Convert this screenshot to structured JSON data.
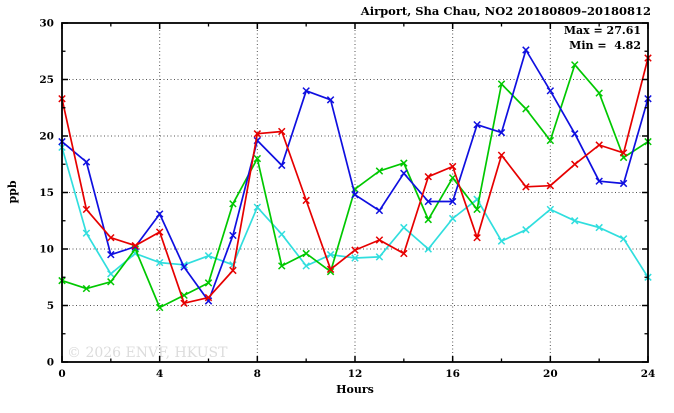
{
  "watermark": "© 2026 ENVF, HKUST",
  "chart_data": {
    "type": "line",
    "title": "Airport, Sha Chau, NO2 20180809–20180812",
    "xlabel": "Hours",
    "ylabel": "ppb",
    "xlim": [
      0,
      24
    ],
    "ylim": [
      0,
      30
    ],
    "x_major_ticks": [
      0,
      4,
      8,
      12,
      16,
      20,
      24
    ],
    "x_minor_ticks": [
      2,
      6,
      10,
      14,
      18,
      22
    ],
    "y_major_ticks": [
      0,
      5,
      10,
      15,
      20,
      25,
      30
    ],
    "y_minor_ticks": [
      2.5,
      7.5,
      12.5,
      17.5,
      22.5,
      27.5
    ],
    "grid_x": [
      4,
      8,
      12,
      16,
      20
    ],
    "grid_y": [
      5,
      10,
      15,
      20,
      25
    ],
    "grid_on": true,
    "legend_position": "top-right-inside",
    "annotations": {
      "max": 27.61,
      "min": 4.82,
      "max_label": "Max = 27.61",
      "min_label": "Min =  4.82"
    },
    "marker": "x-cross",
    "x": [
      0,
      1,
      2,
      3,
      4,
      5,
      6,
      7,
      8,
      9,
      10,
      11,
      12,
      13,
      14,
      15,
      16,
      17,
      18,
      19,
      20,
      21,
      22,
      23,
      24
    ],
    "series": [
      {
        "name": "cyan",
        "color": "#30dede",
        "values": [
          19.0,
          11.4,
          7.8,
          9.6,
          8.8,
          8.6,
          9.4,
          8.6,
          13.7,
          11.3,
          8.5,
          9.5,
          9.2,
          9.3,
          11.9,
          10.0,
          12.7,
          14.4,
          10.7,
          11.7,
          13.5,
          12.5,
          11.9,
          10.9,
          7.5
        ]
      },
      {
        "name": "green",
        "color": "#00c800",
        "values": [
          7.2,
          6.5,
          7.1,
          10.0,
          4.82,
          5.9,
          7.0,
          14.0,
          18.0,
          8.5,
          9.6,
          8.0,
          15.3,
          16.9,
          17.6,
          12.6,
          16.3,
          13.5,
          24.6,
          22.4,
          19.6,
          26.3,
          23.8,
          18.1,
          19.5
        ]
      },
      {
        "name": "blue",
        "color": "#0f0fe0",
        "values": [
          19.5,
          17.7,
          9.5,
          10.2,
          13.1,
          8.4,
          5.4,
          11.2,
          19.6,
          17.4,
          24.0,
          23.2,
          14.8,
          13.4,
          16.7,
          14.2,
          14.2,
          21.0,
          20.3,
          27.61,
          24.0,
          20.2,
          16.0,
          15.8,
          23.3
        ]
      },
      {
        "name": "red",
        "color": "#e60000",
        "values": [
          23.3,
          13.5,
          11.0,
          10.3,
          11.5,
          5.2,
          5.7,
          8.1,
          20.2,
          20.4,
          14.3,
          8.2,
          9.9,
          10.8,
          9.6,
          16.4,
          17.3,
          11.0,
          18.3,
          15.5,
          15.6,
          17.5,
          19.2,
          18.5,
          26.9
        ]
      }
    ]
  }
}
